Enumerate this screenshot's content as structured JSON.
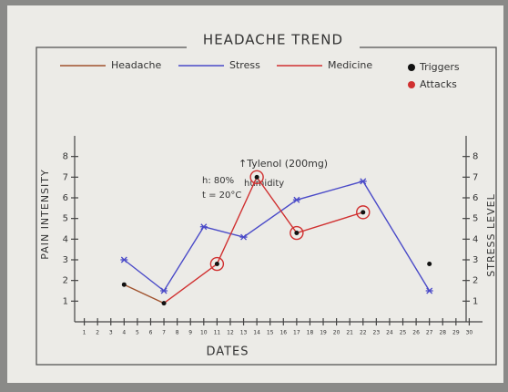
{
  "chart_data": {
    "type": "line",
    "title": "HEADACHE TREND",
    "x_label": "DATES",
    "y_label": "PAIN INTENSITY",
    "y2_label": "STRESS LEVEL",
    "xlim": [
      0,
      31
    ],
    "xticks": [
      1,
      2,
      3,
      4,
      5,
      6,
      7,
      8,
      9,
      10,
      11,
      12,
      13,
      14,
      15,
      16,
      17,
      18,
      19,
      20,
      21,
      22,
      23,
      24,
      25,
      26,
      27,
      28,
      29,
      30
    ],
    "ylim": [
      0,
      9
    ],
    "yticks": [
      1,
      2,
      3,
      4,
      5,
      6,
      7,
      8
    ],
    "y2lim": [
      0,
      9
    ],
    "y2ticks": [
      1,
      2,
      3,
      4,
      5,
      6,
      7,
      8
    ],
    "series": [
      {
        "name": "Headache",
        "color": "#a0522d",
        "marker": "none",
        "x": [
          4,
          7
        ],
        "values": [
          1.8,
          0.9
        ]
      },
      {
        "name": "Stress",
        "color": "#4a4ac8",
        "marker": "star",
        "axis": "y2",
        "x": [
          4,
          7,
          10,
          13,
          17,
          22,
          27
        ],
        "values": [
          3,
          1.5,
          4.6,
          4.1,
          5.9,
          6.8,
          1.5
        ]
      },
      {
        "name": "Medicine",
        "color": "#d03030",
        "marker": "none",
        "x": [
          7,
          11,
          14,
          17,
          22
        ],
        "values": [
          0.9,
          2.8,
          7,
          4.3,
          5.3
        ]
      },
      {
        "name": "Triggers",
        "color": "#111111",
        "marker": "dot",
        "x": [
          4,
          7,
          11,
          14,
          17,
          22,
          27
        ],
        "values": [
          1.8,
          0.9,
          2.8,
          7,
          4.3,
          5.3,
          2.8
        ]
      },
      {
        "name": "Attacks",
        "color": "#d03030",
        "marker": "circle",
        "x": [
          11,
          14,
          17,
          22
        ],
        "values": [
          2.8,
          7,
          4.3,
          5.3
        ]
      }
    ],
    "annotations": [
      "↑Tylenol (200mg)",
      "h: 80%",
      "humidity",
      "t = 20°C"
    ]
  }
}
